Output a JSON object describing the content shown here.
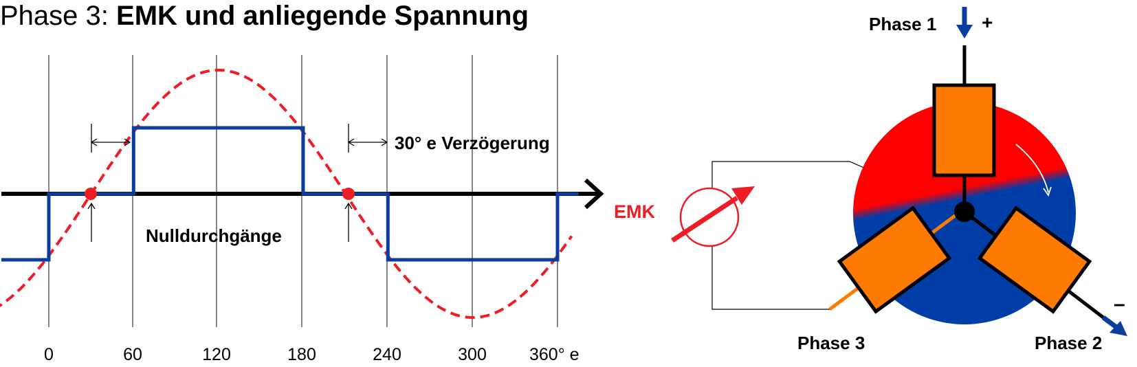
{
  "title": {
    "prefix": "Phase 3: ",
    "main": "EMK und anliegende Spannung"
  },
  "waveform": {
    "x_ticks": [
      "0",
      "60",
      "120",
      "180",
      "240",
      "300",
      "360° e"
    ],
    "delay_label": "30° e Verzögerung",
    "zero_crossings_label": "Nulldurchgänge",
    "colors": {
      "emf": "#ee1c25",
      "voltage": "#0a3d9e",
      "axis": "#000000"
    },
    "emf_curve": "sine, dashed, zero crossings at 30° and 210° e",
    "voltage_levels": [
      {
        "from": -60,
        "to": 0,
        "level": -1
      },
      {
        "from": 0,
        "to": 60,
        "level": 0
      },
      {
        "from": 60,
        "to": 180,
        "level": 1
      },
      {
        "from": 180,
        "to": 240,
        "level": 0
      },
      {
        "from": 240,
        "to": 360,
        "level": -1
      },
      {
        "from": 360,
        "to": 375,
        "level": 0
      }
    ]
  },
  "motor": {
    "phase1_label": "Phase 1",
    "phase2_label": "Phase 2",
    "phase3_label": "Phase 3",
    "plus_sign": "+",
    "minus_sign": "–",
    "emk_label": "EMK",
    "colors": {
      "north": "#ff0000",
      "south": "#003da6",
      "coil": "#ff7a00",
      "arrow": "#0a3d9e",
      "emk": "#ee1c25"
    }
  }
}
